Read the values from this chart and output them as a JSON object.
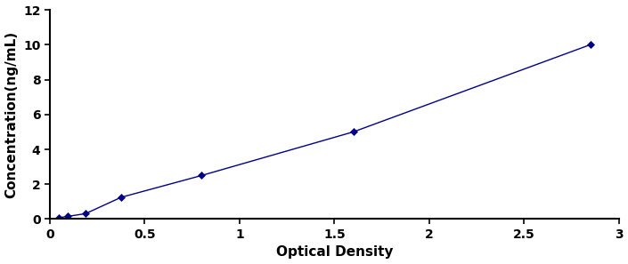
{
  "x": [
    0.046,
    0.094,
    0.188,
    0.376,
    0.8,
    1.6,
    2.85
  ],
  "y": [
    0.078,
    0.156,
    0.312,
    1.25,
    2.5,
    5.0,
    10.0
  ],
  "color": "#00008B",
  "marker": "D",
  "marker_size": 4.5,
  "line_width": 1.0,
  "xlabel": "Optical Density",
  "ylabel": "Concentration(ng/mL)",
  "xlim": [
    0,
    3.0
  ],
  "ylim": [
    0,
    12
  ],
  "xticks": [
    0,
    0.5,
    1,
    1.5,
    2,
    2.5,
    3
  ],
  "xtick_labels": [
    "0",
    "0.5",
    "1",
    "1.5",
    "2",
    "2.5",
    "3"
  ],
  "yticks": [
    0,
    2,
    4,
    6,
    8,
    10,
    12
  ],
  "ytick_labels": [
    "0",
    "2",
    "4",
    "6",
    "8",
    "10",
    "12"
  ],
  "tick_fontsize": 10,
  "label_fontsize": 11,
  "bg_color": "#ffffff",
  "fig_bg_color": "#ffffff",
  "border_color": "#000000"
}
